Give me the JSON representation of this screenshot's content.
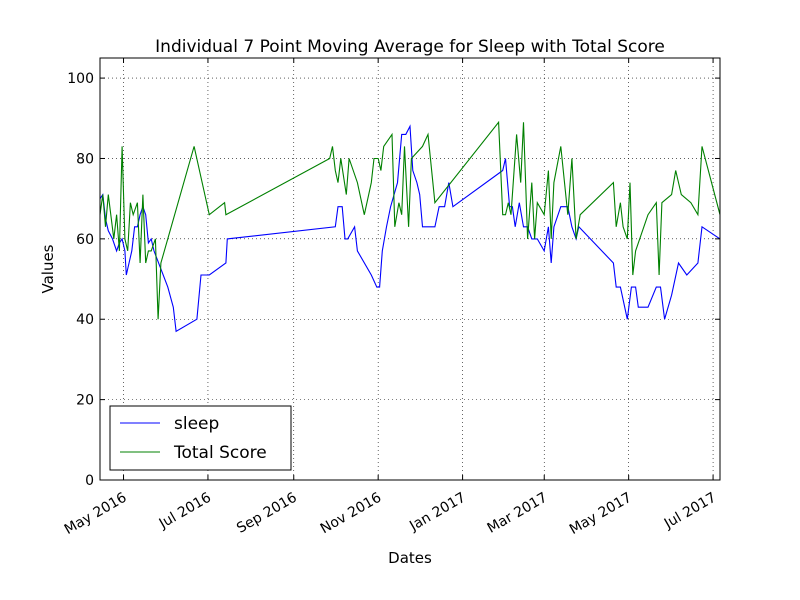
{
  "chart_data": {
    "type": "line",
    "title": "Individual 7 Point Moving Average for Sleep with Total Score",
    "xlabel": "Dates",
    "ylabel": "Values",
    "xlim": [
      "2016-04-14",
      "2017-07-06"
    ],
    "ylim": [
      0,
      105
    ],
    "grid": true,
    "legend_position": "lower-left",
    "x_ticks": [
      {
        "date": "2016-05-01",
        "label": "May 2016"
      },
      {
        "date": "2016-07-01",
        "label": "Jul 2016"
      },
      {
        "date": "2016-09-01",
        "label": "Sep 2016"
      },
      {
        "date": "2016-11-01",
        "label": "Nov 2016"
      },
      {
        "date": "2017-01-01",
        "label": "Jan 2017"
      },
      {
        "date": "2017-03-01",
        "label": "Mar 2017"
      },
      {
        "date": "2017-05-01",
        "label": "May 2017"
      },
      {
        "date": "2017-07-01",
        "label": "Jul 2017"
      }
    ],
    "y_ticks": [
      {
        "value": 0,
        "label": "0"
      },
      {
        "value": 20,
        "label": "20"
      },
      {
        "value": 40,
        "label": "40"
      },
      {
        "value": 60,
        "label": "60"
      },
      {
        "value": 80,
        "label": "80"
      },
      {
        "value": 100,
        "label": "100"
      }
    ],
    "series": [
      {
        "name": "sleep",
        "color": "#0000ff",
        "points": [
          [
            "2016-04-14",
            70
          ],
          [
            "2016-04-16",
            71
          ],
          [
            "2016-04-18",
            65
          ],
          [
            "2016-04-20",
            62
          ],
          [
            "2016-04-23",
            60
          ],
          [
            "2016-04-26",
            57
          ],
          [
            "2016-04-28",
            59
          ],
          [
            "2016-04-30",
            60
          ],
          [
            "2016-05-02",
            57
          ],
          [
            "2016-05-03",
            51
          ],
          [
            "2016-05-07",
            57
          ],
          [
            "2016-05-09",
            63
          ],
          [
            "2016-05-11",
            63
          ],
          [
            "2016-05-13",
            66
          ],
          [
            "2016-05-15",
            68
          ],
          [
            "2016-05-17",
            66
          ],
          [
            "2016-05-19",
            59
          ],
          [
            "2016-05-21",
            60
          ],
          [
            "2016-05-23",
            57
          ],
          [
            "2016-06-02",
            48
          ],
          [
            "2016-06-06",
            43
          ],
          [
            "2016-06-08",
            37
          ],
          [
            "2016-06-23",
            40
          ],
          [
            "2016-06-26",
            51
          ],
          [
            "2016-07-02",
            51
          ],
          [
            "2016-07-14",
            54
          ],
          [
            "2016-07-15",
            60
          ],
          [
            "2016-10-01",
            63
          ],
          [
            "2016-10-03",
            68
          ],
          [
            "2016-10-06",
            68
          ],
          [
            "2016-10-08",
            60
          ],
          [
            "2016-10-10",
            60
          ],
          [
            "2016-10-15",
            63
          ],
          [
            "2016-10-17",
            57
          ],
          [
            "2016-10-27",
            51
          ],
          [
            "2016-10-31",
            48
          ],
          [
            "2016-11-02",
            48
          ],
          [
            "2016-11-04",
            57
          ],
          [
            "2016-11-07",
            63
          ],
          [
            "2016-11-10",
            68
          ],
          [
            "2016-11-15",
            74
          ],
          [
            "2016-11-18",
            86
          ],
          [
            "2016-11-21",
            86
          ],
          [
            "2016-11-24",
            88
          ],
          [
            "2016-11-26",
            77
          ],
          [
            "2016-11-29",
            74
          ],
          [
            "2016-12-01",
            71
          ],
          [
            "2016-12-03",
            63
          ],
          [
            "2016-12-08",
            63
          ],
          [
            "2016-12-12",
            63
          ],
          [
            "2016-12-15",
            68
          ],
          [
            "2016-12-19",
            68
          ],
          [
            "2016-12-22",
            74
          ],
          [
            "2016-12-25",
            68
          ],
          [
            "2017-01-30",
            77
          ],
          [
            "2017-02-01",
            80
          ],
          [
            "2017-02-04",
            68
          ],
          [
            "2017-02-06",
            68
          ],
          [
            "2017-02-08",
            63
          ],
          [
            "2017-02-11",
            69
          ],
          [
            "2017-02-14",
            63
          ],
          [
            "2017-02-17",
            63
          ],
          [
            "2017-02-20",
            60
          ],
          [
            "2017-02-24",
            60
          ],
          [
            "2017-03-01",
            57
          ],
          [
            "2017-03-04",
            63
          ],
          [
            "2017-03-06",
            54
          ],
          [
            "2017-03-08",
            63
          ],
          [
            "2017-03-13",
            68
          ],
          [
            "2017-03-18",
            68
          ],
          [
            "2017-03-21",
            63
          ],
          [
            "2017-03-24",
            60
          ],
          [
            "2017-03-26",
            63
          ],
          [
            "2017-04-20",
            54
          ],
          [
            "2017-04-22",
            48
          ],
          [
            "2017-04-25",
            48
          ],
          [
            "2017-04-30",
            40
          ],
          [
            "2017-05-03",
            48
          ],
          [
            "2017-05-06",
            48
          ],
          [
            "2017-05-08",
            43
          ],
          [
            "2017-05-15",
            43
          ],
          [
            "2017-05-21",
            48
          ],
          [
            "2017-05-24",
            48
          ],
          [
            "2017-05-27",
            40
          ],
          [
            "2017-06-01",
            46
          ],
          [
            "2017-06-06",
            54
          ],
          [
            "2017-06-12",
            51
          ],
          [
            "2017-06-20",
            54
          ],
          [
            "2017-06-23",
            63
          ],
          [
            "2017-07-06",
            60
          ]
        ]
      },
      {
        "name": "Total Score",
        "color": "#008000",
        "points": [
          [
            "2016-04-14",
            66
          ],
          [
            "2016-04-16",
            71
          ],
          [
            "2016-04-18",
            63
          ],
          [
            "2016-04-20",
            71
          ],
          [
            "2016-04-24",
            60
          ],
          [
            "2016-04-26",
            66
          ],
          [
            "2016-04-28",
            57
          ],
          [
            "2016-04-30",
            83
          ],
          [
            "2016-05-02",
            60
          ],
          [
            "2016-05-04",
            57
          ],
          [
            "2016-05-06",
            69
          ],
          [
            "2016-05-08",
            66
          ],
          [
            "2016-05-11",
            69
          ],
          [
            "2016-05-13",
            54
          ],
          [
            "2016-05-15",
            71
          ],
          [
            "2016-05-17",
            54
          ],
          [
            "2016-05-19",
            57
          ],
          [
            "2016-05-21",
            57
          ],
          [
            "2016-05-24",
            60
          ],
          [
            "2016-05-26",
            40
          ],
          [
            "2016-05-28",
            54
          ],
          [
            "2016-06-21",
            83
          ],
          [
            "2016-07-02",
            66
          ],
          [
            "2016-07-13",
            69
          ],
          [
            "2016-07-14",
            66
          ],
          [
            "2016-09-27",
            80
          ],
          [
            "2016-09-29",
            83
          ],
          [
            "2016-10-01",
            77
          ],
          [
            "2016-10-03",
            74
          ],
          [
            "2016-10-05",
            80
          ],
          [
            "2016-10-09",
            71
          ],
          [
            "2016-10-11",
            80
          ],
          [
            "2016-10-17",
            74
          ],
          [
            "2016-10-22",
            66
          ],
          [
            "2016-10-27",
            74
          ],
          [
            "2016-10-29",
            80
          ],
          [
            "2016-11-01",
            80
          ],
          [
            "2016-11-03",
            77
          ],
          [
            "2016-11-05",
            83
          ],
          [
            "2016-11-11",
            86
          ],
          [
            "2016-11-13",
            63
          ],
          [
            "2016-11-16",
            69
          ],
          [
            "2016-11-18",
            66
          ],
          [
            "2016-11-20",
            83
          ],
          [
            "2016-11-23",
            63
          ],
          [
            "2016-11-25",
            80
          ],
          [
            "2016-12-03",
            83
          ],
          [
            "2016-12-07",
            86
          ],
          [
            "2016-12-12",
            69
          ],
          [
            "2017-01-27",
            89
          ],
          [
            "2017-01-30",
            66
          ],
          [
            "2017-02-01",
            66
          ],
          [
            "2017-02-03",
            69
          ],
          [
            "2017-02-05",
            66
          ],
          [
            "2017-02-09",
            86
          ],
          [
            "2017-02-12",
            74
          ],
          [
            "2017-02-14",
            89
          ],
          [
            "2017-02-17",
            60
          ],
          [
            "2017-02-20",
            74
          ],
          [
            "2017-02-22",
            60
          ],
          [
            "2017-02-24",
            69
          ],
          [
            "2017-03-01",
            66
          ],
          [
            "2017-03-04",
            77
          ],
          [
            "2017-03-06",
            60
          ],
          [
            "2017-03-08",
            74
          ],
          [
            "2017-03-13",
            83
          ],
          [
            "2017-03-18",
            66
          ],
          [
            "2017-03-21",
            80
          ],
          [
            "2017-03-24",
            60
          ],
          [
            "2017-03-27",
            66
          ],
          [
            "2017-04-20",
            74
          ],
          [
            "2017-04-22",
            63
          ],
          [
            "2017-04-25",
            69
          ],
          [
            "2017-04-27",
            63
          ],
          [
            "2017-04-30",
            60
          ],
          [
            "2017-05-02",
            74
          ],
          [
            "2017-05-04",
            51
          ],
          [
            "2017-05-06",
            57
          ],
          [
            "2017-05-15",
            66
          ],
          [
            "2017-05-21",
            69
          ],
          [
            "2017-05-23",
            51
          ],
          [
            "2017-05-25",
            69
          ],
          [
            "2017-06-01",
            71
          ],
          [
            "2017-06-04",
            77
          ],
          [
            "2017-06-08",
            71
          ],
          [
            "2017-06-15",
            69
          ],
          [
            "2017-06-20",
            66
          ],
          [
            "2017-06-23",
            83
          ],
          [
            "2017-07-06",
            66
          ]
        ]
      }
    ]
  }
}
